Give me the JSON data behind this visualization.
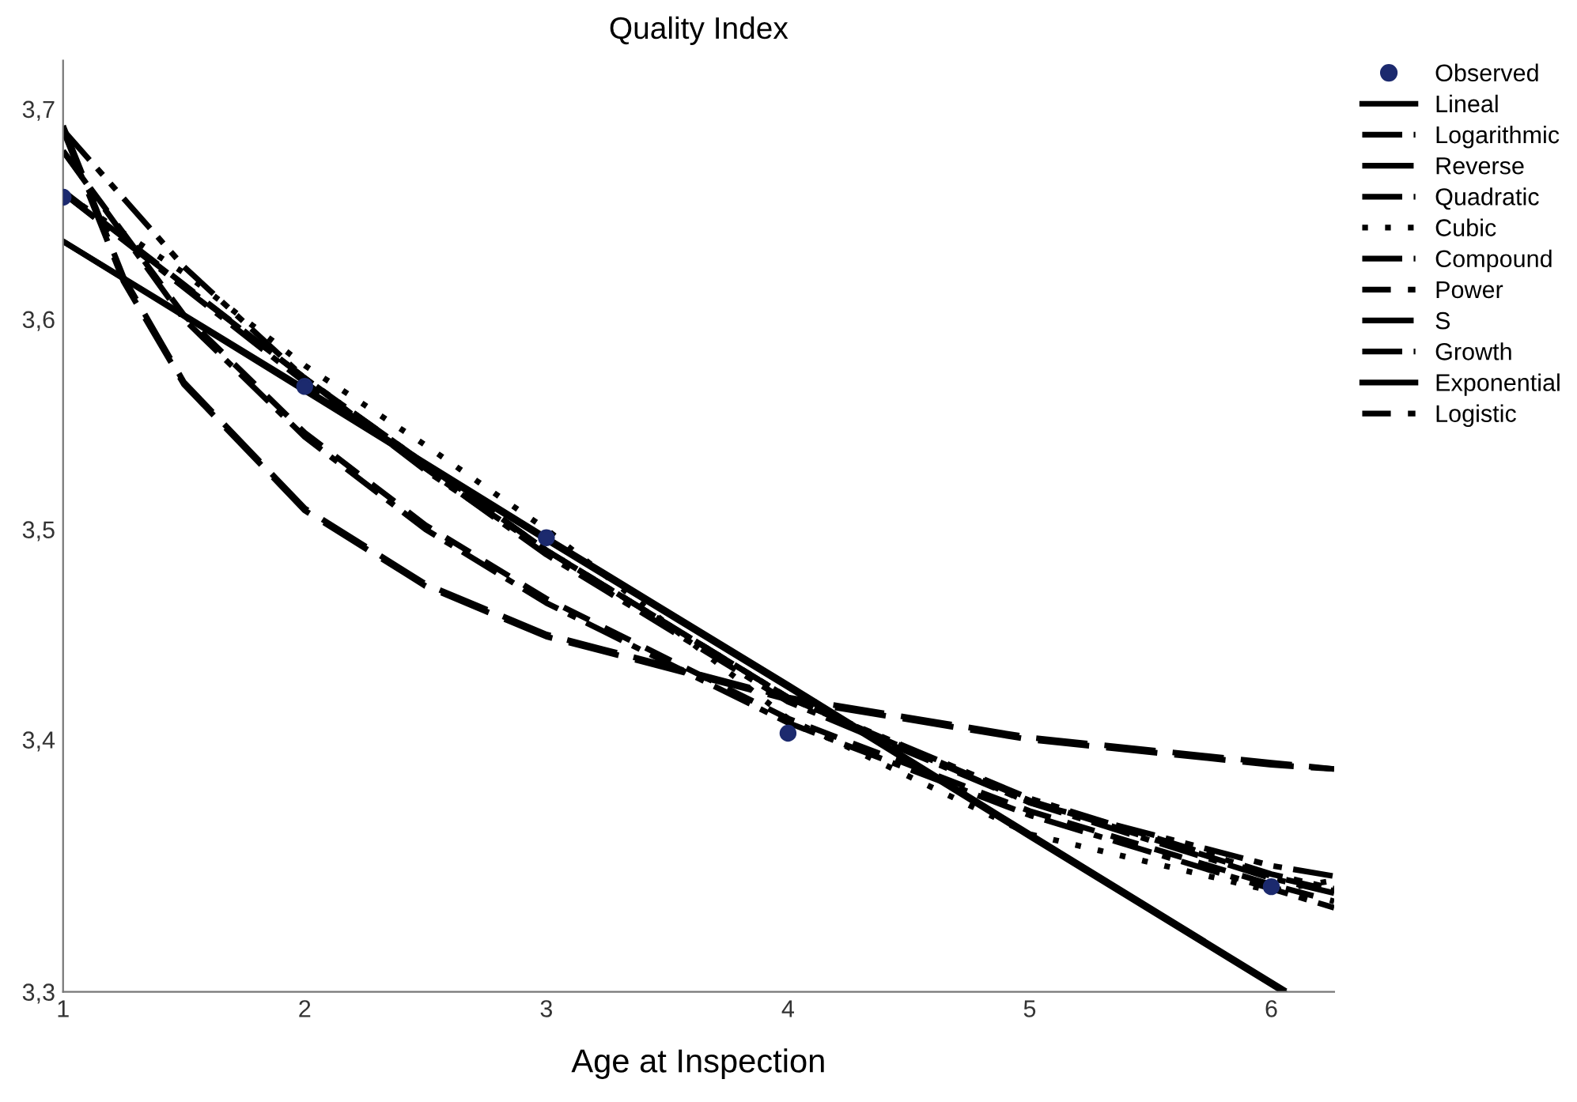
{
  "chart_data": {
    "type": "line",
    "title": "Quality Index",
    "xlabel": "Age at Inspection",
    "xlim": [
      1,
      6.26
    ],
    "xticks": [
      1,
      2,
      3,
      4,
      5,
      6
    ],
    "ylim": [
      3.28,
      3.723
    ],
    "yticks": [
      {
        "value": 3.28,
        "label": "3,3"
      },
      {
        "value": 3.4,
        "label": "3,4"
      },
      {
        "value": 3.5,
        "label": "3,5"
      },
      {
        "value": 3.6,
        "label": "3,6"
      },
      {
        "value": 3.7,
        "label": "3,7"
      }
    ],
    "grid": false,
    "legend": "top right",
    "series": [
      {
        "name": "Observed",
        "type": "scatter",
        "marker": "circle",
        "color": "#1c2a6e",
        "x": [
          1,
          2,
          3,
          4,
          6
        ],
        "values": [
          3.658,
          3.568,
          3.496,
          3.403,
          3.33
        ]
      },
      {
        "name": "Lineal",
        "line_style": "solid",
        "color": "#000000",
        "x": [
          1,
          2,
          3,
          4,
          5,
          6.05
        ],
        "values": [
          3.637,
          3.567,
          3.496,
          3.426,
          3.355,
          3.281
        ]
      },
      {
        "name": "Logarithmic",
        "line_style": "dashdot",
        "color": "#000000",
        "x": [
          1,
          1.5,
          2,
          2.5,
          3,
          4,
          5,
          6,
          6.26
        ],
        "values": [
          3.68,
          3.6,
          3.544,
          3.5,
          3.465,
          3.408,
          3.364,
          3.329,
          3.32
        ]
      },
      {
        "name": "Reverse",
        "line_style": "longdash",
        "color": "#000000",
        "x": [
          1,
          1.25,
          1.5,
          2,
          2.5,
          3,
          4,
          5,
          6,
          6.26
        ],
        "values": [
          3.69,
          3.618,
          3.569,
          3.509,
          3.473,
          3.449,
          3.419,
          3.4,
          3.388,
          3.386
        ]
      },
      {
        "name": "Quadratic",
        "line_style": "dashdotdot",
        "color": "#000000",
        "x": [
          1,
          1.5,
          2,
          2.5,
          3,
          4,
          5,
          6,
          6.26
        ],
        "values": [
          3.69,
          3.625,
          3.572,
          3.528,
          3.49,
          3.42,
          3.37,
          3.34,
          3.335
        ]
      },
      {
        "name": "Cubic",
        "line_style": "dotted",
        "color": "#000000",
        "x": [
          1,
          1.5,
          2,
          2.5,
          3,
          4,
          5,
          6,
          6.26
        ],
        "values": [
          3.66,
          3.622,
          3.578,
          3.54,
          3.5,
          3.41,
          3.355,
          3.328,
          3.333
        ]
      },
      {
        "name": "Compound",
        "line_style": "dashdot",
        "color": "#000000",
        "x": [
          1,
          2,
          3,
          4,
          5,
          6,
          6.26
        ],
        "values": [
          3.66,
          3.57,
          3.488,
          3.418,
          3.37,
          3.334,
          3.327
        ]
      },
      {
        "name": "Power",
        "line_style": "dashed",
        "color": "#000000",
        "x": [
          1,
          1.5,
          2,
          2.5,
          3,
          4,
          5,
          6,
          6.26
        ],
        "values": [
          3.68,
          3.602,
          3.546,
          3.502,
          3.467,
          3.41,
          3.366,
          3.331,
          3.323
        ]
      },
      {
        "name": "S",
        "line_style": "longdash",
        "color": "#000000",
        "x": [
          1,
          1.25,
          1.5,
          2,
          2.5,
          3,
          4,
          5,
          6,
          6.26
        ],
        "values": [
          3.692,
          3.62,
          3.57,
          3.51,
          3.474,
          3.45,
          3.42,
          3.401,
          3.389,
          3.386
        ]
      },
      {
        "name": "Growth",
        "line_style": "dashdotdot",
        "color": "#000000",
        "x": [
          1,
          2,
          3,
          4,
          5,
          6,
          6.26
        ],
        "values": [
          3.66,
          3.572,
          3.49,
          3.42,
          3.372,
          3.336,
          3.329
        ]
      },
      {
        "name": "Exponential",
        "line_style": "solid",
        "color": "#000000",
        "x": [
          1,
          2,
          3,
          4,
          5,
          6.05
        ],
        "values": [
          3.637,
          3.566,
          3.495,
          3.425,
          3.354,
          3.28
        ]
      },
      {
        "name": "Logistic",
        "line_style": "dashed",
        "color": "#000000",
        "x": [
          1,
          2,
          3,
          4,
          5,
          6,
          6.26
        ],
        "values": [
          3.661,
          3.572,
          3.49,
          3.42,
          3.371,
          3.335,
          3.328
        ]
      }
    ]
  }
}
